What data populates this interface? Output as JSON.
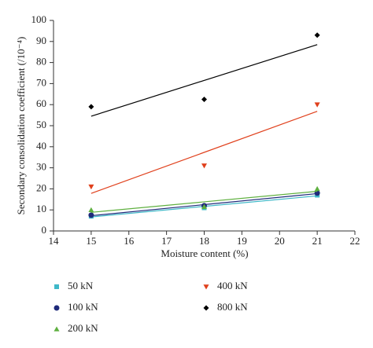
{
  "chart_data": {
    "type": "scatter",
    "x_label": "Moisture content (%)",
    "y_label": "Secondary consolidation coefficient (/10⁻⁴)",
    "x": [
      15,
      18,
      21
    ],
    "xlim": [
      14,
      22
    ],
    "xticks": [
      14,
      15,
      16,
      17,
      18,
      19,
      20,
      21,
      22
    ],
    "ylim": [
      0,
      100
    ],
    "yticks": [
      0,
      10,
      20,
      30,
      40,
      50,
      60,
      70,
      80,
      90,
      100
    ],
    "trendline": "linear",
    "series": [
      {
        "name": "50 kN",
        "color": "#3fb8c8",
        "marker": "square",
        "values": [
          7,
          11,
          17
        ]
      },
      {
        "name": "100 kN",
        "color": "#1f2a7a",
        "marker": "circle",
        "values": [
          7.5,
          12,
          18
        ]
      },
      {
        "name": "200 kN",
        "color": "#5fb040",
        "marker": "triangle-up",
        "values": [
          10,
          11.5,
          20
        ]
      },
      {
        "name": "400 kN",
        "color": "#e0401c",
        "marker": "triangle-down",
        "values": [
          21,
          31,
          60
        ]
      },
      {
        "name": "800 kN",
        "color": "#000000",
        "marker": "diamond",
        "values": [
          59,
          62.5,
          93
        ]
      }
    ]
  }
}
